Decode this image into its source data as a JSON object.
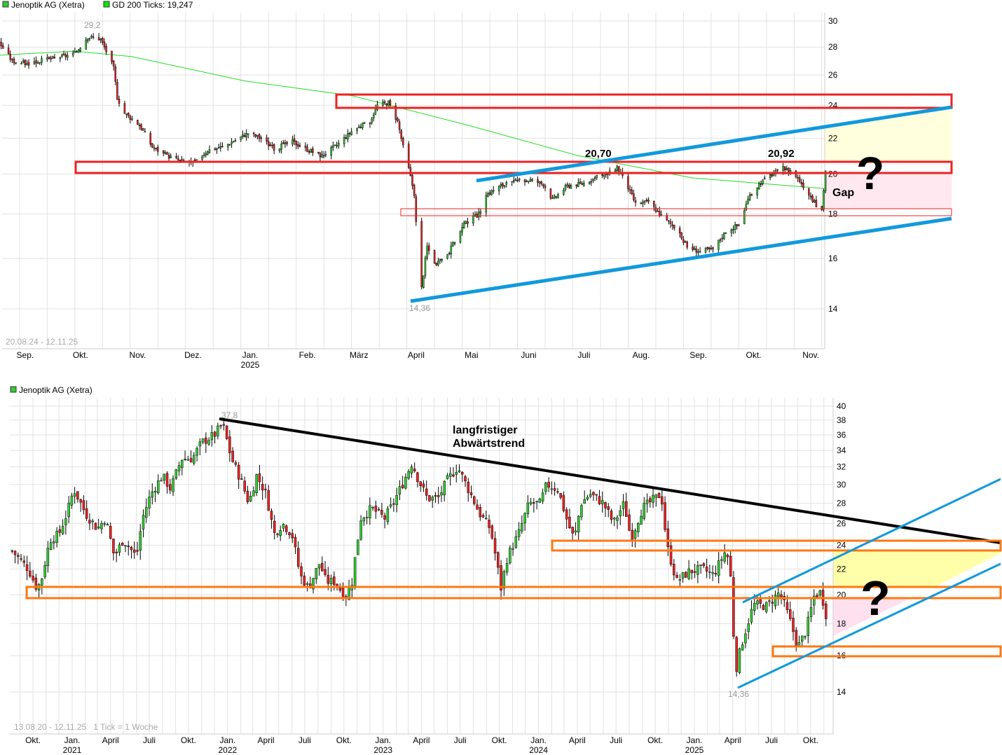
{
  "chart_data": [
    {
      "type": "candlestick",
      "legend": [
        {
          "label": "Jenoptik AG (Xetra)",
          "color": "#33cc33"
        },
        {
          "label": "GD 200 Ticks: 19,247",
          "color": "#00ee00"
        }
      ],
      "range_label": "20.08.24 - 12.11.25",
      "y_scale": "log",
      "ylim": [
        13,
        30.5
      ],
      "y_ticks": [
        "30",
        "28",
        "26",
        "24",
        "22",
        "20",
        "18",
        "16",
        "14"
      ],
      "x_ticks": [
        {
          "label": "Sep.",
          "year": ""
        },
        {
          "label": "Okt.",
          "year": ""
        },
        {
          "label": "Nov.",
          "year": ""
        },
        {
          "label": "Dez.",
          "year": ""
        },
        {
          "label": "Jan.",
          "year": "2025"
        },
        {
          "label": "Feb.",
          "year": ""
        },
        {
          "label": "März",
          "year": ""
        },
        {
          "label": "April",
          "year": ""
        },
        {
          "label": "Mai",
          "year": ""
        },
        {
          "label": "Juni",
          "year": ""
        },
        {
          "label": "Juli",
          "year": ""
        },
        {
          "label": "Aug.",
          "year": ""
        },
        {
          "label": "Sep.",
          "year": ""
        },
        {
          "label": "Okt.",
          "year": ""
        },
        {
          "label": "Nov.",
          "year": ""
        }
      ],
      "close_approx": [
        [
          "2024-08-20",
          28.5
        ],
        [
          "2024-08-28",
          27.0
        ],
        [
          "2024-09-05",
          26.8
        ],
        [
          "2024-09-20",
          27.2
        ],
        [
          "2024-10-01",
          27.5
        ],
        [
          "2024-10-08",
          28.8
        ],
        [
          "2024-10-15",
          28.6
        ],
        [
          "2024-10-22",
          26.5
        ],
        [
          "2024-10-24",
          24.5
        ],
        [
          "2024-10-28",
          23.5
        ],
        [
          "2024-11-05",
          22.8
        ],
        [
          "2024-11-12",
          21.5
        ],
        [
          "2024-11-20",
          21.0
        ],
        [
          "2024-11-28",
          20.7
        ],
        [
          "2024-12-05",
          20.6
        ],
        [
          "2024-12-12",
          21.3
        ],
        [
          "2024-12-20",
          21.5
        ],
        [
          "2025-01-03",
          22.3
        ],
        [
          "2025-01-10",
          22.0
        ],
        [
          "2025-01-17",
          21.4
        ],
        [
          "2025-01-27",
          21.8
        ],
        [
          "2025-02-05",
          21.3
        ],
        [
          "2025-02-12",
          21.0
        ],
        [
          "2025-02-20",
          21.6
        ],
        [
          "2025-03-01",
          22.5
        ],
        [
          "2025-03-10",
          23.0
        ],
        [
          "2025-03-14",
          24.0
        ],
        [
          "2025-03-20",
          24.2
        ],
        [
          "2025-03-25",
          23.0
        ],
        [
          "2025-03-28",
          21.5
        ],
        [
          "2025-03-31",
          20.3
        ],
        [
          "2025-04-03",
          19.0
        ],
        [
          "2025-04-04",
          17.6
        ],
        [
          "2025-04-07",
          14.8
        ],
        [
          "2025-04-10",
          16.5
        ],
        [
          "2025-04-15",
          15.7
        ],
        [
          "2025-04-22",
          16.3
        ],
        [
          "2025-04-30",
          17.5
        ],
        [
          "2025-05-08",
          18.0
        ],
        [
          "2025-05-13",
          19.0
        ],
        [
          "2025-05-20",
          19.4
        ],
        [
          "2025-05-28",
          19.6
        ],
        [
          "2025-06-05",
          19.7
        ],
        [
          "2025-06-12",
          19.5
        ],
        [
          "2025-06-17",
          18.7
        ],
        [
          "2025-06-25",
          19.4
        ],
        [
          "2025-07-03",
          19.5
        ],
        [
          "2025-07-10",
          19.8
        ],
        [
          "2025-07-17",
          20.0
        ],
        [
          "2025-07-22",
          20.4
        ],
        [
          "2025-07-28",
          19.3
        ],
        [
          "2025-08-01",
          18.5
        ],
        [
          "2025-08-08",
          18.6
        ],
        [
          "2025-08-15",
          17.9
        ],
        [
          "2025-08-22",
          17.4
        ],
        [
          "2025-08-29",
          16.5
        ],
        [
          "2025-09-05",
          16.3
        ],
        [
          "2025-09-12",
          16.4
        ],
        [
          "2025-09-19",
          17.2
        ],
        [
          "2025-09-26",
          17.5
        ],
        [
          "2025-10-01",
          18.7
        ],
        [
          "2025-10-07",
          19.5
        ],
        [
          "2025-10-14",
          20.0
        ],
        [
          "2025-10-20",
          20.3
        ],
        [
          "2025-10-24",
          20.2
        ],
        [
          "2025-10-28",
          19.8
        ],
        [
          "2025-11-03",
          19.0
        ],
        [
          "2025-11-07",
          18.4
        ],
        [
          "2025-11-10",
          18.2
        ],
        [
          "2025-11-12",
          20.2
        ]
      ],
      "gd200_approx": [
        [
          "2024-08-20",
          27.4
        ],
        [
          "2024-10-01",
          27.7
        ],
        [
          "2024-11-01",
          27.3
        ],
        [
          "2025-01-01",
          25.6
        ],
        [
          "2025-03-01",
          24.6
        ],
        [
          "2025-05-01",
          22.8
        ],
        [
          "2025-07-01",
          21.0
        ],
        [
          "2025-09-01",
          19.8
        ],
        [
          "2025-11-12",
          19.247
        ]
      ],
      "annotations": {
        "high_label": "29,2",
        "low_label": "14,36",
        "peak1_label": "20,70",
        "peak2_label": "20,92",
        "gap_label": "Gap",
        "question_mark": "?",
        "resistance_zones": [
          [
            24.0,
            24.6
          ],
          [
            20.0,
            20.7
          ],
          [
            18.0,
            18.2
          ]
        ],
        "zone_color": "#ee2222",
        "trend_color": "#1199dd"
      }
    },
    {
      "type": "candlestick",
      "legend": [
        {
          "label": "Jenoptik AG (Xetra)",
          "color": "#33cc33"
        }
      ],
      "range_label": "13.08.20 - 12.11.25   1 Tick = 1 Woche",
      "y_scale": "log",
      "ylim": [
        12.8,
        41
      ],
      "y_ticks": [
        "40",
        "38",
        "36",
        "34",
        "32",
        "30",
        "28",
        "26",
        "24",
        "22",
        "20",
        "18",
        "16",
        "14"
      ],
      "x_ticks": [
        {
          "label": "Okt.",
          "year": ""
        },
        {
          "label": "Jan.",
          "year": "2021"
        },
        {
          "label": "April",
          "year": ""
        },
        {
          "label": "Juli",
          "year": ""
        },
        {
          "label": "Okt.",
          "year": ""
        },
        {
          "label": "Jan.",
          "year": "2022"
        },
        {
          "label": "April",
          "year": ""
        },
        {
          "label": "Juli",
          "year": ""
        },
        {
          "label": "Okt.",
          "year": ""
        },
        {
          "label": "Jan.",
          "year": "2023"
        },
        {
          "label": "April",
          "year": ""
        },
        {
          "label": "Juli",
          "year": ""
        },
        {
          "label": "Okt.",
          "year": ""
        },
        {
          "label": "Jan.",
          "year": "2024"
        },
        {
          "label": "April",
          "year": ""
        },
        {
          "label": "Juli",
          "year": ""
        },
        {
          "label": "Okt.",
          "year": ""
        },
        {
          "label": "Jan.",
          "year": "2025"
        },
        {
          "label": "April",
          "year": ""
        },
        {
          "label": "Juli",
          "year": ""
        },
        {
          "label": "Okt.",
          "year": ""
        }
      ],
      "close_approx": [
        [
          "2020-08-13",
          23.5
        ],
        [
          "2020-09-20",
          22
        ],
        [
          "2020-10-10",
          20.5
        ],
        [
          "2020-10-20",
          21
        ],
        [
          "2020-11-10",
          24.5
        ],
        [
          "2020-12-01",
          25
        ],
        [
          "2020-12-20",
          27
        ],
        [
          "2021-01-05",
          29.5
        ],
        [
          "2021-02-01",
          27
        ],
        [
          "2021-03-01",
          25.5
        ],
        [
          "2021-03-20",
          26.5
        ],
        [
          "2021-04-10",
          23
        ],
        [
          "2021-05-01",
          24.5
        ],
        [
          "2021-06-01",
          23
        ],
        [
          "2021-06-15",
          26.5
        ],
        [
          "2021-07-05",
          29
        ],
        [
          "2021-08-01",
          31
        ],
        [
          "2021-08-20",
          29.5
        ],
        [
          "2021-09-15",
          33
        ],
        [
          "2021-10-10",
          33
        ],
        [
          "2021-11-01",
          35
        ],
        [
          "2021-12-01",
          36
        ],
        [
          "2021-12-20",
          37.5
        ],
        [
          "2022-01-10",
          33
        ],
        [
          "2022-02-01",
          30.5
        ],
        [
          "2022-02-20",
          28
        ],
        [
          "2022-03-10",
          31
        ],
        [
          "2022-04-01",
          29
        ],
        [
          "2022-04-20",
          25
        ],
        [
          "2022-05-10",
          26
        ],
        [
          "2022-06-01",
          25
        ],
        [
          "2022-06-20",
          21.5
        ],
        [
          "2022-07-10",
          20.5
        ],
        [
          "2022-08-05",
          22.5
        ],
        [
          "2022-08-20",
          21
        ],
        [
          "2022-09-10",
          21
        ],
        [
          "2022-10-05",
          19.8
        ],
        [
          "2022-10-20",
          21
        ],
        [
          "2022-11-10",
          26.5
        ],
        [
          "2022-12-05",
          27.5
        ],
        [
          "2023-01-05",
          26.5
        ],
        [
          "2023-01-25",
          28
        ],
        [
          "2023-02-15",
          30
        ],
        [
          "2023-03-10",
          32.5
        ],
        [
          "2023-03-25",
          30.5
        ],
        [
          "2023-04-15",
          28.5
        ],
        [
          "2023-05-10",
          28.5
        ],
        [
          "2023-06-01",
          30.5
        ],
        [
          "2023-06-25",
          32
        ],
        [
          "2023-07-20",
          29.5
        ],
        [
          "2023-08-15",
          27
        ],
        [
          "2023-09-10",
          25.5
        ],
        [
          "2023-10-05",
          20.5
        ],
        [
          "2023-10-20",
          23
        ],
        [
          "2023-11-15",
          25
        ],
        [
          "2023-12-10",
          28
        ],
        [
          "2024-01-05",
          28
        ],
        [
          "2024-01-20",
          30
        ],
        [
          "2024-02-15",
          29.5
        ],
        [
          "2024-03-10",
          26
        ],
        [
          "2024-03-25",
          24.5
        ],
        [
          "2024-04-10",
          28
        ],
        [
          "2024-05-01",
          29
        ],
        [
          "2024-06-01",
          28
        ],
        [
          "2024-06-25",
          26
        ],
        [
          "2024-07-20",
          28
        ],
        [
          "2024-08-05",
          24.5
        ],
        [
          "2024-09-01",
          27.5
        ],
        [
          "2024-10-01",
          28.5
        ],
        [
          "2024-10-15",
          29
        ],
        [
          "2024-10-28",
          24
        ],
        [
          "2024-11-20",
          21
        ],
        [
          "2024-12-20",
          21.8
        ],
        [
          "2025-01-20",
          22
        ],
        [
          "2025-02-15",
          21.5
        ],
        [
          "2025-03-15",
          23.5
        ],
        [
          "2025-03-25",
          22.5
        ],
        [
          "2025-04-07",
          15
        ],
        [
          "2025-04-20",
          16.5
        ],
        [
          "2025-05-20",
          19.3
        ],
        [
          "2025-06-20",
          19.2
        ],
        [
          "2025-07-20",
          20.2
        ],
        [
          "2025-08-10",
          18.5
        ],
        [
          "2025-09-01",
          16.5
        ],
        [
          "2025-09-20",
          17.5
        ],
        [
          "2025-10-10",
          20
        ],
        [
          "2025-10-25",
          20.2
        ],
        [
          "2025-11-07",
          18.5
        ],
        [
          "2025-11-12",
          20.2
        ]
      ],
      "annotations": {
        "high_label": "37,8",
        "low_label": "14,36",
        "trend_label_line1": "langfristiger",
        "trend_label_line2": "Abwärtstrend",
        "question_mark": "?",
        "support_zones": [
          [
            23.5,
            24.3
          ],
          [
            19.8,
            20.6
          ],
          [
            16.0,
            16.6
          ]
        ],
        "zone_color": "#ff7711",
        "downtrend_color": "#000000",
        "trend_color": "#1199dd"
      }
    }
  ]
}
